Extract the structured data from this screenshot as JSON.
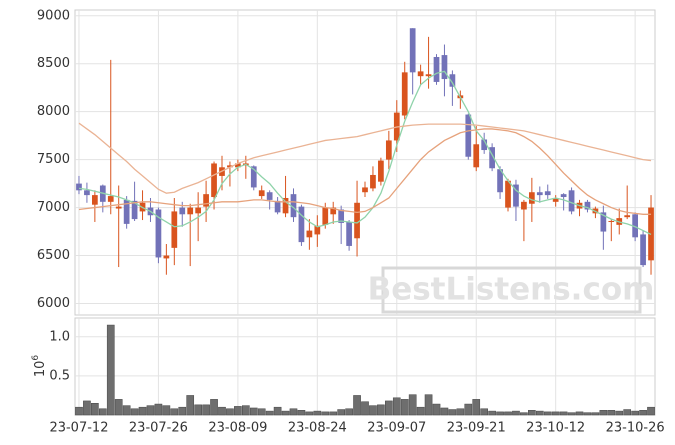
{
  "chart_data": [
    {
      "type": "candlestick",
      "up_color": "#d9541e",
      "down_color": "#7272b8",
      "grid": true,
      "ylim": [
        5880,
        9060
      ],
      "yticks": [
        6000,
        6500,
        7000,
        7500,
        8000,
        8500,
        9000
      ],
      "open": [
        7250,
        7180,
        7030,
        7230,
        7060,
        6990,
        7080,
        7070,
        6960,
        7000,
        6980,
        6470,
        6580,
        7000,
        6930,
        6940,
        7010,
        7110,
        7330,
        7420,
        7420,
        7440,
        7430,
        7120,
        7160,
        7070,
        6940,
        7140,
        7010,
        6690,
        6720,
        6820,
        6930,
        6980,
        6850,
        6680,
        7160,
        7200,
        7270,
        7500,
        7700,
        7960,
        8870,
        8370,
        8370,
        8570,
        8590,
        8390,
        8140,
        7970,
        7420,
        7710,
        7630,
        7400,
        7000,
        7240,
        6980,
        7040,
        7160,
        7170,
        7060,
        7140,
        7180,
        6990,
        7060,
        6940,
        6950,
        6850,
        6820,
        6900,
        6930,
        6720,
        6450
      ],
      "high": [
        7330,
        7260,
        7180,
        7240,
        8540,
        7230,
        7120,
        7270,
        7180,
        7100,
        7000,
        6620,
        7100,
        7060,
        7040,
        7160,
        7280,
        7480,
        7540,
        7480,
        7500,
        7540,
        7440,
        7230,
        7180,
        7110,
        7330,
        7200,
        7030,
        6880,
        6920,
        7050,
        7060,
        7020,
        6870,
        7280,
        7270,
        7430,
        7520,
        7800,
        8120,
        8520,
        8870,
        8490,
        8780,
        8600,
        8700,
        8430,
        8220,
        7980,
        7850,
        7780,
        7670,
        7430,
        7300,
        7290,
        7080,
        7310,
        7220,
        7240,
        7130,
        7150,
        7210,
        7080,
        7080,
        7010,
        7020,
        6880,
        6990,
        7230,
        6950,
        6760,
        7130
      ],
      "low": [
        7140,
        7050,
        6850,
        6950,
        6930,
        6380,
        6780,
        6860,
        6870,
        6850,
        6420,
        6300,
        6400,
        6800,
        6390,
        6650,
        6850,
        6980,
        7180,
        7220,
        7380,
        7300,
        7180,
        7090,
        6980,
        6930,
        6900,
        6850,
        6600,
        6560,
        6590,
        6780,
        6830,
        6620,
        6550,
        6490,
        7110,
        7170,
        7230,
        7400,
        7580,
        7920,
        8180,
        8280,
        8240,
        8280,
        8160,
        8060,
        8030,
        7500,
        7380,
        7560,
        7380,
        7090,
        6960,
        6860,
        6650,
        6850,
        7050,
        7090,
        7010,
        6970,
        6930,
        6910,
        6950,
        6890,
        6560,
        6650,
        6720,
        6880,
        6650,
        6380,
        6300
      ],
      "close": [
        7180,
        7130,
        7130,
        7060,
        7120,
        7010,
        6830,
        6880,
        7050,
        6920,
        6480,
        6500,
        6960,
        6930,
        7000,
        7000,
        7140,
        7460,
        7420,
        7440,
        7460,
        7460,
        7210,
        7180,
        7080,
        6950,
        7100,
        6900,
        6640,
        6760,
        6810,
        7000,
        7000,
        6840,
        6600,
        7050,
        7210,
        7340,
        7490,
        7700,
        7990,
        8410,
        8410,
        8420,
        8390,
        8310,
        8340,
        8260,
        8170,
        7530,
        7660,
        7600,
        7410,
        7160,
        7280,
        7010,
        7060,
        7160,
        7130,
        7130,
        7100,
        7110,
        6960,
        7050,
        6980,
        6990,
        6750,
        6860,
        6890,
        6920,
        6690,
        6400,
        7000
      ],
      "series": [
        {
          "color": "#8fd3aa",
          "values": [
            7200,
            7190,
            7170,
            7150,
            7130,
            7110,
            7080,
            7050,
            7000,
            6960,
            6900,
            6850,
            6800,
            6810,
            6850,
            6900,
            6960,
            7080,
            7250,
            7350,
            7420,
            7450,
            7400,
            7320,
            7250,
            7150,
            7060,
            7000,
            6920,
            6850,
            6800,
            6820,
            6850,
            6860,
            6850,
            6840,
            6900,
            7000,
            7150,
            7380,
            7650,
            7900,
            8100,
            8280,
            8350,
            8400,
            8420,
            8300,
            8150,
            8000,
            7800,
            7700,
            7550,
            7400,
            7280,
            7180,
            7120,
            7080,
            7060,
            7080,
            7100,
            7080,
            7050,
            7020,
            7000,
            6960,
            6920,
            6880,
            6850,
            6830,
            6800,
            6760,
            6720
          ]
        },
        {
          "color": "#eab394",
          "values": [
            7880,
            7820,
            7760,
            7690,
            7620,
            7550,
            7480,
            7400,
            7330,
            7260,
            7190,
            7150,
            7160,
            7200,
            7230,
            7260,
            7300,
            7340,
            7380,
            7420,
            7460,
            7490,
            7520,
            7540,
            7560,
            7580,
            7600,
            7620,
            7640,
            7660,
            7680,
            7700,
            7710,
            7720,
            7730,
            7740,
            7760,
            7780,
            7800,
            7820,
            7840,
            7850,
            7860,
            7865,
            7870,
            7870,
            7870,
            7870,
            7870,
            7865,
            7860,
            7850,
            7840,
            7830,
            7820,
            7810,
            7800,
            7780,
            7760,
            7740,
            7720,
            7700,
            7680,
            7660,
            7640,
            7620,
            7600,
            7580,
            7560,
            7540,
            7520,
            7500,
            7490
          ]
        },
        {
          "color": "#e6a27c",
          "values": [
            6980,
            6990,
            7000,
            7010,
            7020,
            7030,
            7040,
            7050,
            7060,
            7060,
            7050,
            7040,
            7030,
            7020,
            7020,
            7030,
            7040,
            7050,
            7060,
            7060,
            7060,
            7070,
            7080,
            7080,
            7070,
            7060,
            7060,
            7060,
            7050,
            7040,
            7020,
            7000,
            6990,
            6970,
            6960,
            6950,
            6960,
            7000,
            7050,
            7100,
            7200,
            7300,
            7400,
            7500,
            7580,
            7640,
            7700,
            7740,
            7780,
            7800,
            7810,
            7820,
            7820,
            7810,
            7800,
            7780,
            7740,
            7690,
            7620,
            7540,
            7450,
            7360,
            7280,
            7200,
            7130,
            7080,
            7040,
            7000,
            6970,
            6950,
            6940,
            6930,
            6930
          ]
        }
      ]
    },
    {
      "type": "bar",
      "color": "#6e6e6e",
      "grid": true,
      "y_offset_label": {
        "base": "10",
        "exponent": "6"
      },
      "ylim": [
        0,
        1.24
      ],
      "yticks": [
        0.5,
        {
          "value": 1,
          "label": "1.0"
        }
      ],
      "categories": [
        "23-07-12",
        null,
        null,
        null,
        null,
        null,
        null,
        null,
        null,
        null,
        "23-07-26",
        null,
        null,
        null,
        null,
        null,
        null,
        null,
        null,
        null,
        "23-08-09",
        null,
        null,
        null,
        null,
        null,
        null,
        null,
        null,
        null,
        "23-08-24",
        null,
        null,
        null,
        null,
        null,
        null,
        null,
        null,
        null,
        "23-09-07",
        null,
        null,
        null,
        null,
        null,
        null,
        null,
        null,
        null,
        "23-09-21",
        null,
        null,
        null,
        null,
        null,
        null,
        null,
        null,
        null,
        "23-10-12",
        null,
        null,
        null,
        null,
        null,
        null,
        null,
        null,
        null,
        "23-10-26",
        null,
        null
      ],
      "values": [
        0.1,
        0.18,
        0.15,
        0.08,
        1.15,
        0.2,
        0.12,
        0.08,
        0.1,
        0.12,
        0.14,
        0.12,
        0.08,
        0.1,
        0.25,
        0.13,
        0.13,
        0.2,
        0.1,
        0.08,
        0.11,
        0.12,
        0.09,
        0.08,
        0.05,
        0.1,
        0.05,
        0.08,
        0.06,
        0.04,
        0.05,
        0.04,
        0.04,
        0.07,
        0.08,
        0.25,
        0.17,
        0.12,
        0.13,
        0.18,
        0.22,
        0.2,
        0.26,
        0.1,
        0.26,
        0.14,
        0.09,
        0.07,
        0.08,
        0.14,
        0.2,
        0.08,
        0.05,
        0.04,
        0.04,
        0.05,
        0.03,
        0.06,
        0.05,
        0.04,
        0.04,
        0.04,
        0.03,
        0.04,
        0.03,
        0.03,
        0.06,
        0.06,
        0.05,
        0.07,
        0.05,
        0.06,
        0.1
      ]
    }
  ],
  "watermark": "BestListens.com"
}
